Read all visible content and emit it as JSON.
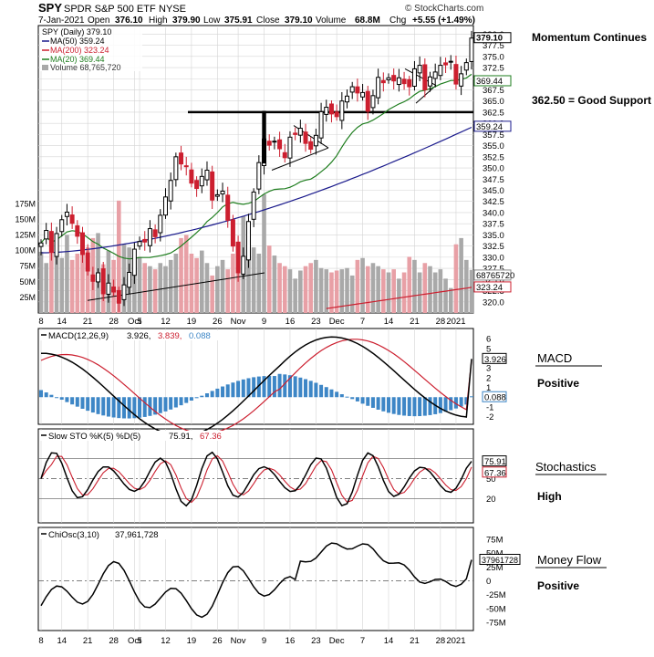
{
  "header": {
    "ticker": "SPY",
    "name": "SPDR S&P 500 ETF",
    "exchange": "NYSE",
    "source": "© StockCharts.com",
    "date": "7-Jan-2021",
    "open_label": "Open",
    "open": "376.10",
    "high_label": "High",
    "high": "379.90",
    "low_label": "Low",
    "low": "375.91",
    "close_label": "Close",
    "close": "379.10",
    "volume_label": "Volume",
    "volume": "68.8M",
    "chg_label": "Chg",
    "chg": "+5.55 (+1.49%)"
  },
  "legend": {
    "price": "SPY (Daily) 379.10",
    "ma50": "MA(50) 359.24",
    "ma200": "MA(200) 323.24",
    "ma20": "MA(20) 369.44",
    "volume": "Volume 68,765,720"
  },
  "annotations": {
    "momentum": "Momentum Continues",
    "support": "362.50 = Good Support",
    "macd_title": "MACD",
    "macd_state": "Positive",
    "sto_title": "Stochastics",
    "sto_state": "High",
    "mf_title": "Money Flow",
    "mf_state": "Positive"
  },
  "panels": {
    "macd_legend": {
      "name": "MACD(12,26,9)",
      "v1": "3.926,",
      "v2": "3.839,",
      "v3": "0.088"
    },
    "sto_legend": {
      "name": "Slow STO %K(5) %D(5)",
      "v1": "75.91,",
      "v2": "67.36"
    },
    "chi_legend": {
      "name": "ChiOsc(3,10)",
      "v1": "37,961,728"
    }
  },
  "colors": {
    "up": "#000000",
    "down": "#cc1f2f",
    "ma50": "#1a1a8c",
    "ma200": "#cc1f2f",
    "ma20": "#1e7d1e",
    "vol_up": "#a9a9a9",
    "vol_down": "#e8a0a6",
    "hist": "#3d86c6",
    "grid": "#d4d4d4"
  },
  "x_tick_labels": [
    "8",
    "14",
    "21",
    "28",
    "Oct",
    "5",
    "12",
    "19",
    "26",
    "Nov",
    "9",
    "16",
    "23",
    "Dec",
    "7",
    "14",
    "21",
    "28",
    "2021"
  ],
  "x_tick_index": [
    0,
    4,
    9,
    14,
    18,
    19,
    24,
    29,
    34,
    38,
    43,
    48,
    53,
    57,
    62,
    67,
    72,
    77,
    80
  ],
  "chart_data": [
    {
      "type": "candlestick",
      "title": "SPY SPDR S&P 500 ETF NYSE",
      "dates_range": [
        "2020-09-08",
        "2021-01-07"
      ],
      "y_ticks": [
        "320.0",
        "322.5",
        "325.0",
        "327.5",
        "330.0",
        "332.5",
        "335.0",
        "337.5",
        "340.0",
        "342.5",
        "345.0",
        "347.5",
        "350.0",
        "352.5",
        "355.0",
        "357.5",
        "360.0",
        "362.5",
        "365.0",
        "367.5",
        "370.0",
        "372.5",
        "375.0",
        "377.5",
        "380.0"
      ],
      "ylim": [
        317.5,
        381.5
      ],
      "closes": [
        333.2,
        336.0,
        331.0,
        335.3,
        338.4,
        340.1,
        337.6,
        334.7,
        330.6,
        326.9,
        324.6,
        326.5,
        321.8,
        324.2,
        322.2,
        319.7,
        323.8,
        326.6,
        331.8,
        333.5,
        333.4,
        336.4,
        334.6,
        339.4,
        343.5,
        347.2,
        352.5,
        350.9,
        350.3,
        346.6,
        345.4,
        348.1,
        349.5,
        342.8,
        344.0,
        344.8,
        338.3,
        332.5,
        326.5,
        330.2,
        338.0,
        344.6,
        351.2,
        356.5,
        355.1,
        356.0,
        354.3,
        352.3,
        356.9,
        357.5,
        358.9,
        355.5,
        354.2,
        357.3,
        362.6,
        363.6,
        362.1,
        361.5,
        365.0,
        366.1,
        368.2,
        366.8,
        366.9,
        362.7,
        366.2,
        370.3,
        369.1,
        370.2,
        369.5,
        370.2,
        368.9,
        368.2,
        372.2,
        373.0,
        367.5,
        370.4,
        371.5,
        373.0,
        373.1,
        373.9,
        368.8,
        371.1,
        373.6,
        379.1
      ],
      "highlight_close": "379.10",
      "support_level": 362.5,
      "ma50_label": "359.24",
      "ma200_label": "323.24",
      "ma20_label": "369.44"
    },
    {
      "type": "bar",
      "title": "Volume",
      "ylabel_ticks": [
        "25M",
        "50M",
        "75M",
        "100M",
        "125M",
        "150M",
        "175M"
      ],
      "values_m": [
        98,
        80,
        95,
        95,
        88,
        125,
        85,
        95,
        110,
        105,
        120,
        128,
        78,
        100,
        85,
        180,
        110,
        105,
        85,
        90,
        80,
        75,
        70,
        80,
        75,
        85,
        95,
        120,
        125,
        95,
        88,
        100,
        80,
        60,
        75,
        85,
        70,
        95,
        110,
        155,
        115,
        105,
        95,
        190,
        108,
        92,
        80,
        75,
        70,
        55,
        68,
        75,
        80,
        85,
        72,
        70,
        65,
        68,
        70,
        72,
        60,
        85,
        88,
        75,
        80,
        75,
        70,
        65,
        70,
        55,
        65,
        90,
        85,
        65,
        80,
        75,
        65,
        70,
        55,
        40,
        110,
        120,
        85,
        69
      ],
      "value_label": "68765720",
      "ma200_value_label": "323.24"
    },
    {
      "type": "line",
      "title": "MACD(12,26,9)",
      "y_ticks": [
        "-2",
        "-1",
        "1",
        "2",
        "3",
        "4",
        "5",
        "6"
      ],
      "macd": 3.926,
      "signal": 3.839,
      "histogram": 0.088
    },
    {
      "type": "line",
      "title": "Slow STO %K(5) %D(5)",
      "y_ticks": [
        "20",
        "50",
        "80"
      ],
      "k": 75.91,
      "d": 67.36
    },
    {
      "type": "line",
      "title": "ChiOsc(3,10)",
      "y_ticks": [
        "-75M",
        "-50M",
        "-25M",
        "0",
        "25M",
        "50M",
        "75M"
      ],
      "value": 37961728
    }
  ]
}
